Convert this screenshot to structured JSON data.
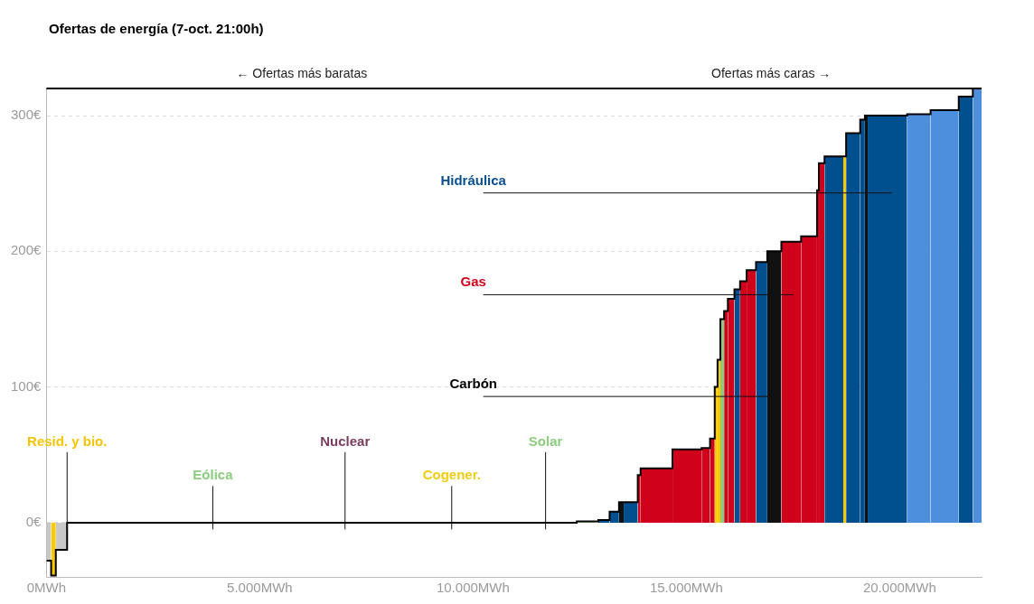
{
  "chart_data": {
    "type": "step",
    "title": "Ofertas de energía (7-oct. 21:00h)",
    "direction_labels": [
      "← Ofertas más baratas",
      "Ofertas más caras →"
    ],
    "values": [
      -28,
      -39,
      -20,
      0,
      0,
      0,
      0,
      0,
      0,
      0,
      0,
      0,
      0,
      0,
      0,
      0,
      0,
      0,
      0,
      0,
      0,
      0,
      0,
      0,
      0,
      0,
      0,
      0,
      0,
      0,
      0,
      0,
      0,
      0,
      0,
      0,
      0,
      0,
      0,
      0,
      0,
      0,
      0,
      0,
      0,
      1,
      2,
      8,
      15,
      15,
      35,
      40,
      54,
      55,
      62,
      100,
      120,
      150,
      156,
      165,
      172,
      178,
      186,
      192,
      200,
      207,
      211,
      245,
      265,
      270,
      270,
      287,
      297,
      300,
      300,
      301,
      304,
      314,
      320
    ],
    "widths": [
      110,
      110,
      265,
      396,
      110,
      330,
      176,
      374,
      110,
      132,
      110,
      308,
      154,
      616,
      220,
      770,
      110,
      220,
      220,
      264,
      220,
      110,
      176,
      154,
      286,
      220,
      220,
      176,
      110,
      484,
      264,
      352,
      484,
      220,
      330,
      330,
      440,
      330,
      330,
      330,
      220,
      330,
      440,
      330,
      440,
      506,
      264,
      220,
      110,
      330,
      66,
      748,
      682,
      198,
      110,
      66,
      66,
      88,
      88,
      154,
      132,
      154,
      220,
      264,
      330,
      462,
      374,
      44,
      132,
      440,
      66,
      330,
      110,
      66,
      924,
      550,
      660,
      330,
      220
    ],
    "colors": [
      "#c8c8c8",
      "#fbc900",
      "#c8c8c8",
      "#fbc900",
      "#8ccc7f",
      "#fbc900",
      "#8ccc7f",
      "#fbc900",
      "#d0021b",
      "#8ccc7f",
      "#7a3d5f",
      "#fbc900",
      "#8ccc7f",
      "#fbc900",
      "#8ccc7f",
      "#8ccc7f",
      "#fbc900",
      "#00508f",
      "#8ccc7f",
      "#fbc900",
      "#8ccc7f",
      "#d0021b",
      "#fbc900",
      "#00508f",
      "#8ccc7f",
      "#fbc900",
      "#8ccc7f",
      "#fbc900",
      "#d0021b",
      "#7a3d5f",
      "#8ccc7f",
      "#fbc900",
      "#fbc900",
      "#8ccc7f",
      "#fbc900",
      "#8ccc7f",
      "#fbc900",
      "#8ccc7f",
      "#fbc900",
      "#8ccc7f",
      "#fbc900",
      "#8ccc7f",
      "#a9d88f",
      "#8ccc7f",
      "#d0021b",
      "#a9d88f",
      "#00508f",
      "#00508f",
      "#111111",
      "#00508f",
      "#d0021b",
      "#d0021b",
      "#d0021b",
      "#d0021b",
      "#d0021b",
      "#fbc900",
      "#fbc900",
      "#8ccc7f",
      "#d0021b",
      "#d0021b",
      "#00508f",
      "#d0021b",
      "#d0021b",
      "#00508f",
      "#111111",
      "#d0021b",
      "#d0021b",
      "#d0021b",
      "#d0021b",
      "#00508f",
      "#fbc900",
      "#00508f",
      "#00508f",
      "#111111",
      "#00508f",
      "#4d8fdc",
      "#4d8fdc",
      "#00508f",
      "#4d8fdc"
    ],
    "xlim": [
      0,
      21920
    ],
    "xticks": [
      {
        "value": 0,
        "label": "0MWh"
      },
      {
        "value": 5000,
        "label": "5.000MWh"
      },
      {
        "value": 10000,
        "label": "10.000MWh"
      },
      {
        "value": 15000,
        "label": "15.000MWh"
      },
      {
        "value": 20000,
        "label": "20.000MWh"
      }
    ],
    "ylim": [
      -40,
      320
    ],
    "yticks": [
      {
        "value": 0,
        "label": "0€"
      },
      {
        "value": 100,
        "label": "100€"
      },
      {
        "value": 200,
        "label": "200€"
      },
      {
        "value": 300,
        "label": "300€"
      }
    ],
    "grid": true,
    "legend": false,
    "annotations": [
      {
        "text": "Hidráulica",
        "color": "#0a4f8f",
        "x": 10240,
        "x_end": 19820,
        "y": 243
      },
      {
        "text": "Gas",
        "color": "#d0021b",
        "x": 10240,
        "x_end": 17510,
        "y": 168
      },
      {
        "text": "Carbón",
        "color": "#000000",
        "x": 10240,
        "x_end": 17000,
        "y": 93
      },
      {
        "text": "Resid. y bio.",
        "color": "#f5c400",
        "x": 485,
        "y": 52,
        "y_end": -5
      },
      {
        "text": "Eólica",
        "color": "#8ccc7f",
        "x": 3900,
        "y": 27,
        "y_end": -5
      },
      {
        "text": "Nuclear",
        "color": "#7a3d5f",
        "x": 7000,
        "y": 52,
        "y_end": -5
      },
      {
        "text": "Cogener.",
        "color": "#f0cc10",
        "x": 9500,
        "y": 27,
        "y_end": -5
      },
      {
        "text": "Solar",
        "color": "#8ccc7f",
        "x": 11700,
        "y": 52,
        "y_end": -5
      }
    ]
  }
}
